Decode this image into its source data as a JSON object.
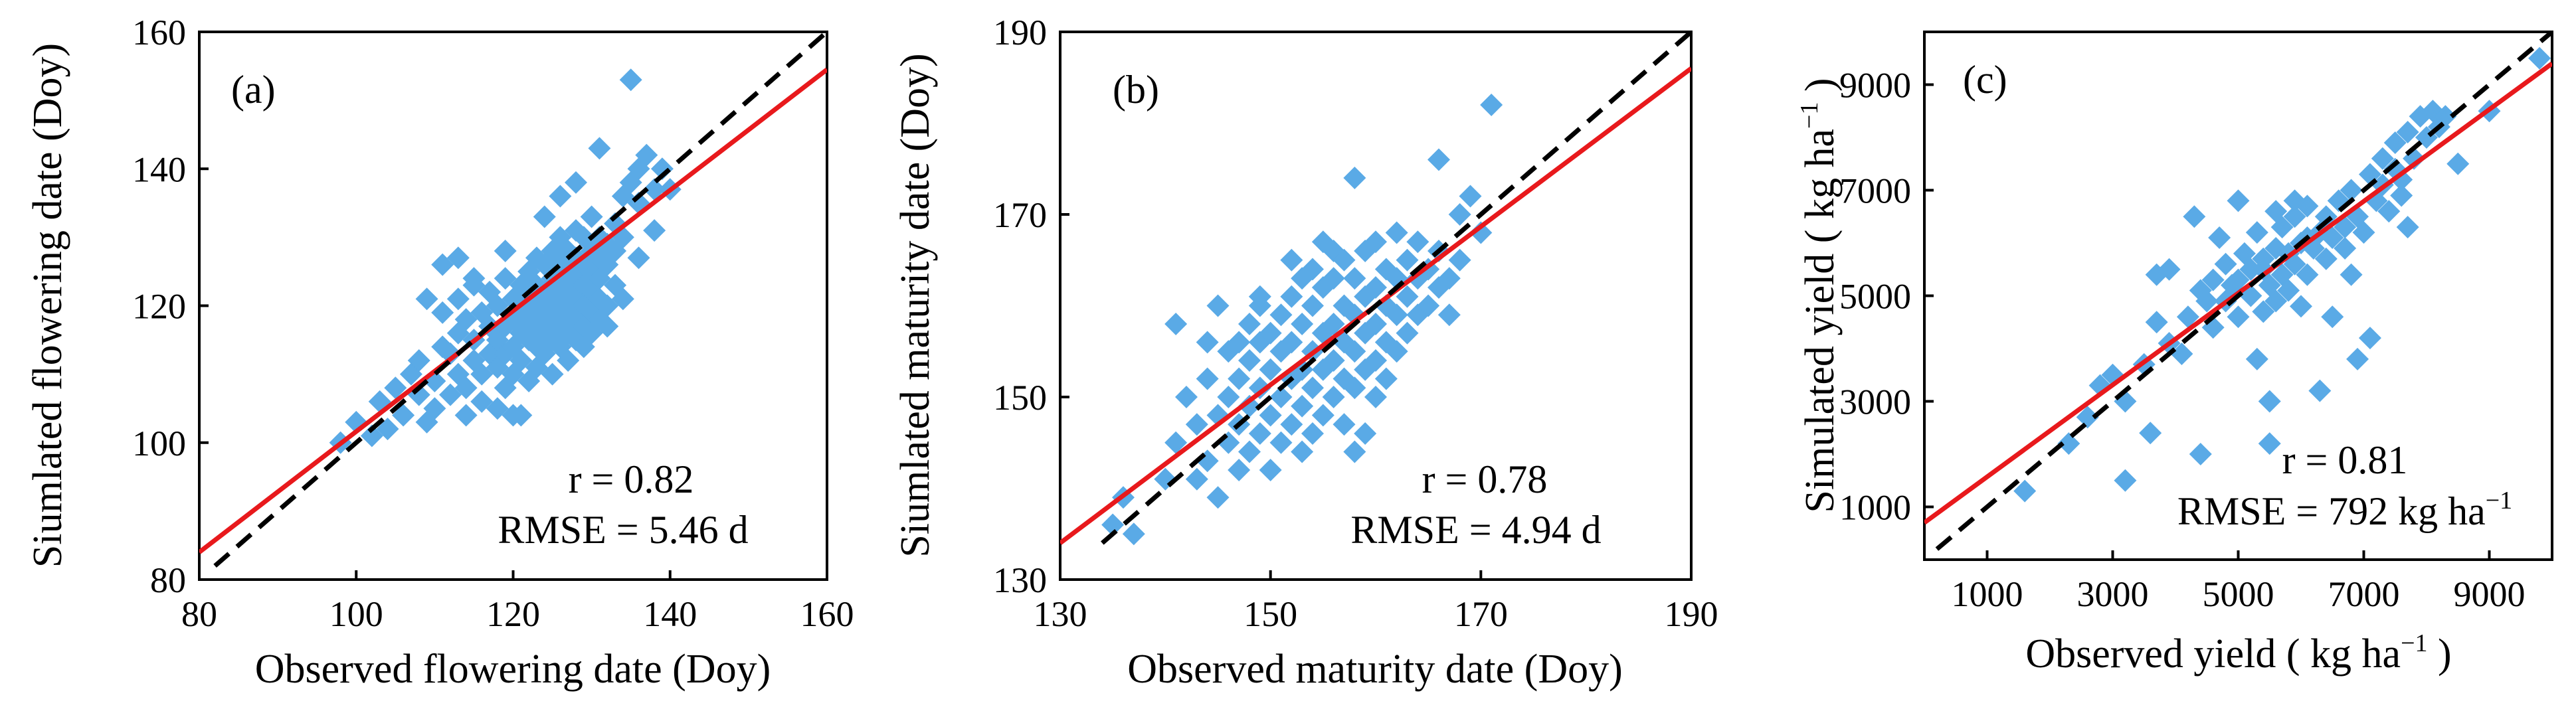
{
  "chart_data": [
    {
      "type": "scatter",
      "panel_label": "(a)",
      "xlabel": "Observed flowering date (Doy)",
      "ylabel": "Siumlated flowering date (Doy)",
      "xlim": [
        80,
        160
      ],
      "ylim": [
        80,
        160
      ],
      "xticks": [
        "80",
        "100",
        "120",
        "140",
        "160"
      ],
      "yticks": [
        "80",
        "100",
        "120",
        "140",
        "160"
      ],
      "stats": {
        "r": "r = 0.82",
        "rmse": "RMSE = 5.46 d"
      },
      "fit_line": {
        "x": [
          80,
          160
        ],
        "y": [
          84,
          154.5
        ]
      },
      "one_to_one": {
        "x": [
          82,
          160
        ],
        "y": [
          82,
          160
        ]
      },
      "point_color": "#5aaae6",
      "fit_color": "#e8191c",
      "points": [
        [
          98,
          100
        ],
        [
          100,
          103
        ],
        [
          102,
          101
        ],
        [
          103,
          106
        ],
        [
          104,
          102
        ],
        [
          105,
          108
        ],
        [
          106,
          104
        ],
        [
          107,
          110
        ],
        [
          108,
          107
        ],
        [
          108,
          112
        ],
        [
          109,
          103
        ],
        [
          110,
          105
        ],
        [
          110,
          109
        ],
        [
          111,
          114
        ],
        [
          111,
          119
        ],
        [
          112,
          107
        ],
        [
          112,
          113
        ],
        [
          113,
          110
        ],
        [
          113,
          116
        ],
        [
          113,
          121
        ],
        [
          114,
          104
        ],
        [
          114,
          108
        ],
        [
          114,
          118
        ],
        [
          115,
          112
        ],
        [
          115,
          115
        ],
        [
          115,
          123
        ],
        [
          116,
          106
        ],
        [
          116,
          110
        ],
        [
          116,
          119
        ],
        [
          117,
          113
        ],
        [
          117,
          117
        ],
        [
          117,
          122
        ],
        [
          118,
          105
        ],
        [
          118,
          111
        ],
        [
          118,
          115
        ],
        [
          118,
          120
        ],
        [
          119,
          108
        ],
        [
          119,
          113
        ],
        [
          119,
          117
        ],
        [
          119,
          124
        ],
        [
          120,
          110
        ],
        [
          120,
          114
        ],
        [
          120,
          118
        ],
        [
          120,
          121
        ],
        [
          121,
          104
        ],
        [
          121,
          112
        ],
        [
          121,
          116
        ],
        [
          121,
          119
        ],
        [
          121,
          123
        ],
        [
          122,
          109
        ],
        [
          122,
          115
        ],
        [
          122,
          118
        ],
        [
          122,
          121
        ],
        [
          122,
          125
        ],
        [
          123,
          111
        ],
        [
          123,
          114
        ],
        [
          123,
          117
        ],
        [
          123,
          120
        ],
        [
          123,
          123
        ],
        [
          123,
          127
        ],
        [
          124,
          113
        ],
        [
          124,
          116
        ],
        [
          124,
          119
        ],
        [
          124,
          122
        ],
        [
          124,
          126
        ],
        [
          125,
          110
        ],
        [
          125,
          115
        ],
        [
          125,
          118
        ],
        [
          125,
          121
        ],
        [
          125,
          124
        ],
        [
          125,
          128
        ],
        [
          126,
          114
        ],
        [
          126,
          117
        ],
        [
          126,
          120
        ],
        [
          126,
          123
        ],
        [
          126,
          126
        ],
        [
          126,
          130
        ],
        [
          127,
          112
        ],
        [
          127,
          116
        ],
        [
          127,
          119
        ],
        [
          127,
          122
        ],
        [
          127,
          125
        ],
        [
          127,
          128
        ],
        [
          128,
          115
        ],
        [
          128,
          118
        ],
        [
          128,
          121
        ],
        [
          128,
          124
        ],
        [
          128,
          127
        ],
        [
          128,
          131
        ],
        [
          129,
          114
        ],
        [
          129,
          117
        ],
        [
          129,
          120
        ],
        [
          129,
          123
        ],
        [
          129,
          126
        ],
        [
          129,
          130
        ],
        [
          130,
          116
        ],
        [
          130,
          119
        ],
        [
          130,
          122
        ],
        [
          130,
          125
        ],
        [
          130,
          128
        ],
        [
          130,
          133
        ],
        [
          131,
          118
        ],
        [
          131,
          121
        ],
        [
          131,
          124
        ],
        [
          131,
          127
        ],
        [
          131,
          130
        ],
        [
          132,
          117
        ],
        [
          132,
          120
        ],
        [
          132,
          126
        ],
        [
          132,
          129
        ],
        [
          133,
          123
        ],
        [
          133,
          128
        ],
        [
          133,
          132
        ],
        [
          134,
          121
        ],
        [
          134,
          130
        ],
        [
          134,
          136
        ],
        [
          135,
          138
        ],
        [
          135,
          153
        ],
        [
          136,
          140
        ],
        [
          136,
          127
        ],
        [
          137,
          142
        ],
        [
          138,
          137
        ],
        [
          138,
          131
        ],
        [
          139,
          140
        ],
        [
          140,
          137
        ],
        [
          111,
          126
        ],
        [
          113,
          127
        ],
        [
          115,
          124
        ],
        [
          109,
          121
        ],
        [
          119,
          128
        ],
        [
          126,
          136
        ],
        [
          128,
          138
        ],
        [
          124,
          133
        ],
        [
          120,
          104
        ],
        [
          131,
          143
        ],
        [
          136,
          135
        ]
      ]
    },
    {
      "type": "scatter",
      "panel_label": "(b)",
      "xlabel": "Observed maturity date (Doy)",
      "ylabel": "Siumlated maturity date (Doy)",
      "xlim": [
        130,
        190
      ],
      "ylim": [
        130,
        190
      ],
      "xticks": [
        "130",
        "150",
        "170",
        "190"
      ],
      "yticks": [
        "130",
        "150",
        "170",
        "190"
      ],
      "stats": {
        "r": "r = 0.78",
        "rmse": "RMSE = 4.94 d"
      },
      "fit_line": {
        "x": [
          130,
          190
        ],
        "y": [
          134,
          186
        ]
      },
      "one_to_one": {
        "x": [
          134,
          190
        ],
        "y": [
          134,
          190
        ]
      },
      "point_color": "#5aaae6",
      "fit_color": "#e8191c",
      "points": [
        [
          135,
          136
        ],
        [
          136,
          139
        ],
        [
          137,
          135
        ],
        [
          140,
          141
        ],
        [
          141,
          145
        ],
        [
          141,
          158
        ],
        [
          142,
          150
        ],
        [
          143,
          141
        ],
        [
          143,
          147
        ],
        [
          144,
          152
        ],
        [
          144,
          143
        ],
        [
          145,
          139
        ],
        [
          145,
          148
        ],
        [
          145,
          160
        ],
        [
          146,
          145
        ],
        [
          146,
          150
        ],
        [
          146,
          155
        ],
        [
          147,
          142
        ],
        [
          147,
          147
        ],
        [
          147,
          152
        ],
        [
          148,
          144
        ],
        [
          148,
          149
        ],
        [
          148,
          154
        ],
        [
          148,
          158
        ],
        [
          149,
          146
        ],
        [
          149,
          151
        ],
        [
          149,
          156
        ],
        [
          149,
          160
        ],
        [
          150,
          142
        ],
        [
          150,
          148
        ],
        [
          150,
          153
        ],
        [
          150,
          157
        ],
        [
          151,
          145
        ],
        [
          151,
          150
        ],
        [
          151,
          155
        ],
        [
          151,
          159
        ],
        [
          152,
          147
        ],
        [
          152,
          152
        ],
        [
          152,
          156
        ],
        [
          152,
          161
        ],
        [
          153,
          144
        ],
        [
          153,
          149
        ],
        [
          153,
          153
        ],
        [
          153,
          158
        ],
        [
          153,
          163
        ],
        [
          154,
          146
        ],
        [
          154,
          151
        ],
        [
          154,
          155
        ],
        [
          154,
          160
        ],
        [
          154,
          164
        ],
        [
          155,
          148
        ],
        [
          155,
          153
        ],
        [
          155,
          157
        ],
        [
          155,
          162
        ],
        [
          156,
          150
        ],
        [
          156,
          154
        ],
        [
          156,
          158
        ],
        [
          156,
          163
        ],
        [
          156,
          166
        ],
        [
          157,
          147
        ],
        [
          157,
          152
        ],
        [
          157,
          156
        ],
        [
          157,
          160
        ],
        [
          157,
          165
        ],
        [
          158,
          151
        ],
        [
          158,
          155
        ],
        [
          158,
          159
        ],
        [
          158,
          163
        ],
        [
          158,
          174
        ],
        [
          159,
          146
        ],
        [
          159,
          153
        ],
        [
          159,
          157
        ],
        [
          159,
          161
        ],
        [
          159,
          166
        ],
        [
          160,
          150
        ],
        [
          160,
          154
        ],
        [
          160,
          158
        ],
        [
          160,
          162
        ],
        [
          161,
          152
        ],
        [
          161,
          156
        ],
        [
          161,
          160
        ],
        [
          161,
          164
        ],
        [
          162,
          155
        ],
        [
          162,
          159
        ],
        [
          162,
          163
        ],
        [
          163,
          157
        ],
        [
          163,
          161
        ],
        [
          163,
          165
        ],
        [
          164,
          159
        ],
        [
          164,
          163
        ],
        [
          164,
          167
        ],
        [
          165,
          160
        ],
        [
          165,
          164
        ],
        [
          166,
          162
        ],
        [
          166,
          166
        ],
        [
          166,
          176
        ],
        [
          167,
          163
        ],
        [
          167,
          159
        ],
        [
          168,
          170
        ],
        [
          168,
          165
        ],
        [
          169,
          172
        ],
        [
          170,
          168
        ],
        [
          171,
          182
        ],
        [
          155,
          167
        ],
        [
          147,
          156
        ],
        [
          152,
          165
        ],
        [
          160,
          167
        ],
        [
          149,
          161
        ],
        [
          158,
          144
        ],
        [
          162,
          168
        ],
        [
          144,
          156
        ]
      ]
    },
    {
      "type": "scatter",
      "panel_label": "(c)",
      "xlabel": "Observed yield ( kg ha−1 )",
      "ylabel": "Simulated yield ( kg ha−1 )",
      "xlim": [
        0,
        10000
      ],
      "ylim": [
        0,
        10000
      ],
      "xticks": [
        "1000",
        "3000",
        "5000",
        "7000",
        "9000"
      ],
      "yticks": [
        "1000",
        "3000",
        "5000",
        "7000",
        "9000"
      ],
      "stats": {
        "r": "r = 0.81",
        "rmse": "RMSE = 792 kg ha−1"
      },
      "fit_line": {
        "x": [
          0,
          10000
        ],
        "y": [
          700,
          9400
        ]
      },
      "one_to_one": {
        "x": [
          200,
          10000
        ],
        "y": [
          200,
          10000
        ]
      },
      "point_color": "#5aaae6",
      "fit_color": "#e8191c",
      "points": [
        [
          1600,
          1300
        ],
        [
          2300,
          2200
        ],
        [
          2600,
          2700
        ],
        [
          2800,
          3300
        ],
        [
          3000,
          3500
        ],
        [
          3200,
          3000
        ],
        [
          3200,
          1500
        ],
        [
          3500,
          3700
        ],
        [
          3600,
          2400
        ],
        [
          3700,
          4500
        ],
        [
          3700,
          5400
        ],
        [
          3900,
          5500
        ],
        [
          3900,
          4100
        ],
        [
          4100,
          3900
        ],
        [
          4200,
          4600
        ],
        [
          4300,
          6500
        ],
        [
          4400,
          2000
        ],
        [
          4400,
          5100
        ],
        [
          4600,
          4400
        ],
        [
          4600,
          5300
        ],
        [
          4700,
          6100
        ],
        [
          4800,
          4900
        ],
        [
          4800,
          5600
        ],
        [
          5000,
          5300
        ],
        [
          5000,
          4600
        ],
        [
          5000,
          6800
        ],
        [
          5100,
          5800
        ],
        [
          5200,
          5000
        ],
        [
          5200,
          5500
        ],
        [
          5300,
          3800
        ],
        [
          5300,
          6200
        ],
        [
          5400,
          4700
        ],
        [
          5400,
          5700
        ],
        [
          5500,
          5200
        ],
        [
          5500,
          3000
        ],
        [
          5500,
          2200
        ],
        [
          5600,
          5900
        ],
        [
          5600,
          4900
        ],
        [
          5700,
          5400
        ],
        [
          5700,
          6300
        ],
        [
          5800,
          5100
        ],
        [
          5800,
          5800
        ],
        [
          5900,
          6500
        ],
        [
          5900,
          5600
        ],
        [
          6000,
          4800
        ],
        [
          6000,
          6000
        ],
        [
          6100,
          5400
        ],
        [
          6100,
          6700
        ],
        [
          6200,
          5900
        ],
        [
          6300,
          6200
        ],
        [
          6300,
          3200
        ],
        [
          6400,
          5700
        ],
        [
          6400,
          6500
        ],
        [
          6500,
          6100
        ],
        [
          6500,
          4600
        ],
        [
          6600,
          6800
        ],
        [
          6700,
          6300
        ],
        [
          6700,
          5900
        ],
        [
          6800,
          7000
        ],
        [
          6900,
          3800
        ],
        [
          6900,
          6500
        ],
        [
          7000,
          6200
        ],
        [
          7100,
          7300
        ],
        [
          7100,
          4200
        ],
        [
          7200,
          6800
        ],
        [
          7300,
          7600
        ],
        [
          7300,
          7100
        ],
        [
          7400,
          6600
        ],
        [
          7500,
          7400
        ],
        [
          7500,
          7900
        ],
        [
          7600,
          7200
        ],
        [
          7700,
          8100
        ],
        [
          7700,
          6300
        ],
        [
          7800,
          7600
        ],
        [
          7900,
          8400
        ],
        [
          8000,
          8000
        ],
        [
          8100,
          8500
        ],
        [
          8200,
          8200
        ],
        [
          8300,
          8400
        ],
        [
          8500,
          7500
        ],
        [
          9000,
          8500
        ],
        [
          9800,
          9500
        ],
        [
          5400,
          5500
        ],
        [
          6100,
          6100
        ],
        [
          4900,
          5200
        ],
        [
          5900,
          6800
        ],
        [
          6800,
          5400
        ],
        [
          4500,
          4900
        ],
        [
          7600,
          6900
        ],
        [
          5600,
          6600
        ]
      ]
    }
  ]
}
